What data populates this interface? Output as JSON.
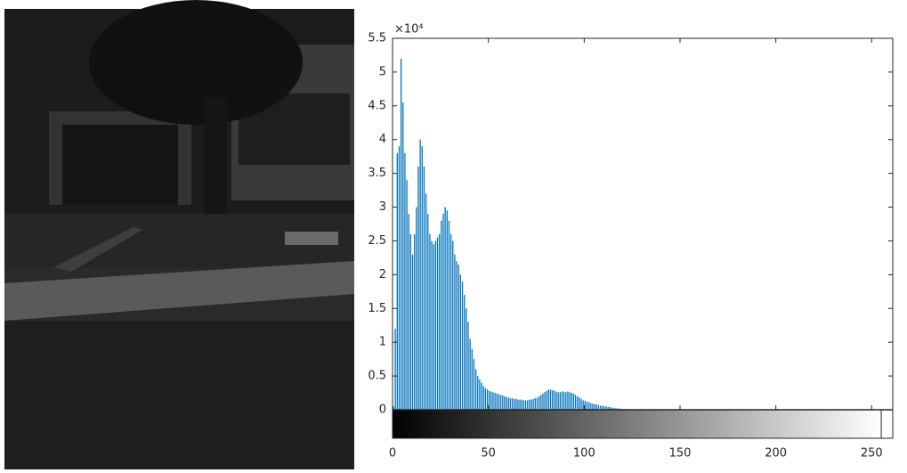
{
  "chart_data": {
    "type": "histogram",
    "y_exponent": "×10⁴",
    "color": "#0072bd",
    "x": [
      0,
      1,
      2,
      3,
      4,
      5,
      6,
      7,
      8,
      9,
      10,
      11,
      12,
      13,
      14,
      15,
      16,
      17,
      18,
      19,
      20,
      21,
      22,
      23,
      24,
      25,
      26,
      27,
      28,
      29,
      30,
      31,
      32,
      33,
      34,
      35,
      36,
      37,
      38,
      39,
      40,
      41,
      42,
      43,
      44,
      45,
      46,
      47,
      48,
      49,
      50,
      51,
      52,
      53,
      54,
      55,
      56,
      57,
      58,
      59,
      60,
      61,
      62,
      63,
      64,
      65,
      66,
      67,
      68,
      69,
      70,
      71,
      72,
      73,
      74,
      75,
      76,
      77,
      78,
      79,
      80,
      81,
      82,
      83,
      84,
      85,
      86,
      87,
      88,
      89,
      90,
      91,
      92,
      93,
      94,
      95,
      96,
      97,
      98,
      99,
      100,
      101,
      102,
      103,
      104,
      105,
      106,
      107,
      108,
      109,
      110,
      111,
      112,
      113,
      114,
      115,
      116,
      117,
      118,
      119,
      120,
      121,
      122,
      123,
      124,
      125,
      126,
      127
    ],
    "values": [
      0.05,
      1.2,
      3.8,
      3.9,
      5.2,
      4.55,
      3.8,
      3.4,
      2.9,
      2.6,
      2.3,
      2.6,
      3.0,
      3.6,
      4.0,
      3.9,
      3.6,
      3.2,
      2.9,
      2.6,
      2.5,
      2.45,
      2.5,
      2.55,
      2.6,
      2.8,
      2.9,
      3.0,
      2.95,
      2.8,
      2.6,
      2.5,
      2.3,
      2.2,
      2.15,
      2.0,
      1.9,
      1.7,
      1.5,
      1.3,
      1.05,
      0.9,
      0.75,
      0.6,
      0.5,
      0.45,
      0.4,
      0.35,
      0.32,
      0.3,
      0.28,
      0.27,
      0.26,
      0.25,
      0.24,
      0.23,
      0.22,
      0.21,
      0.2,
      0.19,
      0.18,
      0.17,
      0.17,
      0.16,
      0.16,
      0.15,
      0.15,
      0.15,
      0.14,
      0.14,
      0.14,
      0.15,
      0.15,
      0.16,
      0.17,
      0.18,
      0.2,
      0.22,
      0.24,
      0.26,
      0.28,
      0.3,
      0.3,
      0.29,
      0.28,
      0.27,
      0.26,
      0.26,
      0.27,
      0.27,
      0.26,
      0.27,
      0.26,
      0.25,
      0.24,
      0.22,
      0.2,
      0.18,
      0.16,
      0.14,
      0.13,
      0.12,
      0.11,
      0.1,
      0.09,
      0.08,
      0.08,
      0.07,
      0.06,
      0.06,
      0.05,
      0.05,
      0.04,
      0.04,
      0.03,
      0.03,
      0.02,
      0.02,
      0.02,
      0.01,
      0.01,
      0.01,
      0.01,
      0,
      0,
      0,
      0,
      0
    ],
    "xlim": [
      0,
      261
    ],
    "xticks": [
      0,
      50,
      100,
      150,
      200,
      250
    ],
    "ylim": [
      0,
      5.5
    ],
    "yticks": [
      0,
      0.5,
      1,
      1.5,
      2,
      2.5,
      3,
      3.5,
      4,
      4.5,
      5,
      5.5
    ]
  }
}
